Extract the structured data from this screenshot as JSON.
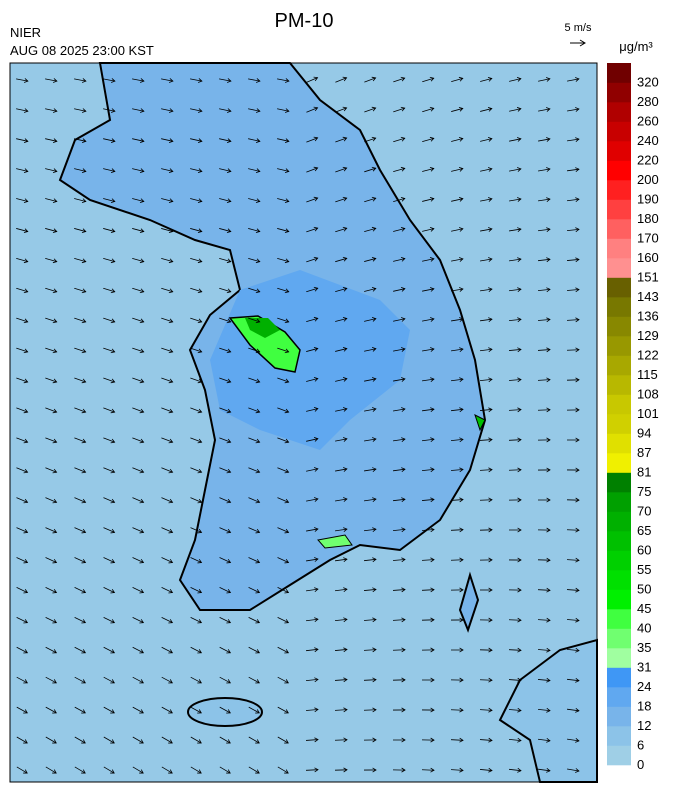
{
  "header": {
    "title": "PM-10",
    "source": "NIER",
    "timestamp": "AUG 08 2025 23:00 KST",
    "wind_scale": "5 m/s"
  },
  "colorbar": {
    "unit": "μg/m³",
    "levels": [
      0,
      6,
      12,
      18,
      24,
      31,
      35,
      40,
      45,
      50,
      55,
      60,
      65,
      70,
      75,
      81,
      87,
      94,
      101,
      108,
      115,
      122,
      129,
      136,
      143,
      151,
      160,
      170,
      180,
      190,
      200,
      220,
      240,
      260,
      280,
      320
    ],
    "colors": [
      "#9fcfe6",
      "#8cc3e8",
      "#78b4ea",
      "#60a8f0",
      "#3f97f5",
      "#a0ffa0",
      "#70ff70",
      "#40ff40",
      "#00f000",
      "#00e000",
      "#00d000",
      "#00c000",
      "#00b000",
      "#00a000",
      "#008000",
      "#f0f000",
      "#e0e000",
      "#d0d000",
      "#c8c800",
      "#b8b800",
      "#a8a800",
      "#989800",
      "#888800",
      "#787800",
      "#686000",
      "#ff9090",
      "#ff8080",
      "#ff6060",
      "#ff4040",
      "#ff2020",
      "#ff0000",
      "#e00000",
      "#c80000",
      "#b00000",
      "#900000",
      "#700000"
    ]
  }
}
